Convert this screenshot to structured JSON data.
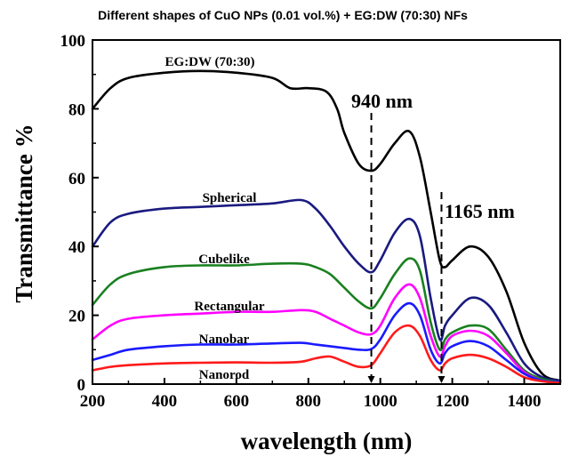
{
  "chart_data": {
    "type": "line",
    "title": "Different shapes of CuO NPs (0.01 vol.%) + EG:DW (70:30) NFs",
    "xlabel": "wavelength (nm)",
    "ylabel": "Transmittance %",
    "xlim": [
      200,
      1500
    ],
    "ylim": [
      0,
      100
    ],
    "x_ticks": [
      "200",
      "400",
      "600",
      "800",
      "1000",
      "1200",
      "1400"
    ],
    "y_ticks": [
      "0",
      "20",
      "40",
      "60",
      "80",
      "100"
    ],
    "grid": false,
    "legend": "none (series labeled inline)",
    "annotations": [
      {
        "text": "940 nm",
        "x": 975
      },
      {
        "text": "1165 nm",
        "x": 1170
      }
    ],
    "series": [
      {
        "name": "EG:DW (70:30)",
        "color": "#000000",
        "x": [
          200,
          250,
          300,
          400,
          500,
          600,
          700,
          750,
          800,
          850,
          880,
          900,
          940,
          975,
          1000,
          1040,
          1080,
          1110,
          1140,
          1165,
          1180,
          1200,
          1250,
          1300,
          1350,
          1400,
          1450,
          1500
        ],
        "y": [
          80,
          86,
          89,
          90.5,
          91,
          90.5,
          89,
          86,
          86,
          85,
          80,
          73,
          64,
          62,
          64,
          70,
          73.5,
          66,
          50,
          36,
          34,
          36,
          40,
          37,
          27,
          12,
          3,
          1
        ]
      },
      {
        "name": "Spherical",
        "color": "#1a1a80",
        "x": [
          200,
          250,
          300,
          400,
          500,
          600,
          700,
          780,
          820,
          860,
          900,
          940,
          975,
          1000,
          1040,
          1080,
          1110,
          1140,
          1165,
          1180,
          1200,
          1250,
          1300,
          1350,
          1400,
          1450,
          1500
        ],
        "y": [
          40,
          47,
          49.5,
          51,
          51.5,
          52,
          52.5,
          53.5,
          51,
          46,
          40,
          35,
          32.5,
          36,
          44,
          48,
          43,
          25,
          13,
          17,
          20,
          25,
          23,
          15,
          6,
          2,
          1
        ]
      },
      {
        "name": "Cubelike",
        "color": "#1a8020",
        "x": [
          200,
          250,
          300,
          400,
          500,
          600,
          700,
          780,
          820,
          860,
          900,
          940,
          975,
          1000,
          1040,
          1080,
          1110,
          1140,
          1165,
          1180,
          1200,
          1250,
          1300,
          1350,
          1400,
          1450,
          1500
        ],
        "y": [
          23,
          29,
          32,
          34,
          34.5,
          34.5,
          35,
          35,
          34,
          32,
          28,
          24,
          22,
          25,
          32,
          36.5,
          33,
          18,
          10,
          13,
          15,
          17,
          16,
          10,
          4,
          1.5,
          0.5
        ]
      },
      {
        "name": "Rectangular",
        "color": "#ff00ff",
        "x": [
          200,
          250,
          300,
          400,
          500,
          600,
          700,
          780,
          820,
          860,
          900,
          940,
          975,
          1000,
          1040,
          1080,
          1110,
          1140,
          1165,
          1180,
          1200,
          1250,
          1300,
          1350,
          1400,
          1450,
          1500
        ],
        "y": [
          13,
          17,
          19,
          20,
          20.5,
          21,
          21,
          21.5,
          21,
          19,
          17,
          15,
          14.5,
          17,
          25,
          29,
          25,
          14,
          8,
          11,
          14,
          15.5,
          14,
          9,
          3.5,
          1,
          0.5
        ]
      },
      {
        "name": "Nanobar",
        "color": "#1a1aff",
        "x": [
          200,
          250,
          300,
          400,
          500,
          600,
          700,
          780,
          820,
          860,
          900,
          940,
          975,
          1000,
          1040,
          1080,
          1110,
          1140,
          1165,
          1180,
          1200,
          1250,
          1300,
          1350,
          1400,
          1450,
          1500
        ],
        "y": [
          7,
          8.5,
          10,
          11,
          11.5,
          11.5,
          11.8,
          12,
          11.5,
          11,
          10.5,
          10,
          10.2,
          13,
          20,
          23.5,
          20,
          10,
          6,
          9,
          11,
          12.5,
          11,
          7,
          3,
          1,
          0.5
        ]
      },
      {
        "name": "Nanorod",
        "color": "#ff1a1a",
        "x": [
          200,
          250,
          300,
          400,
          500,
          600,
          700,
          780,
          820,
          860,
          900,
          940,
          975,
          1000,
          1040,
          1080,
          1110,
          1140,
          1165,
          1180,
          1200,
          1250,
          1300,
          1350,
          1400,
          1450,
          1500
        ],
        "y": [
          4,
          5,
          5.5,
          6,
          6.2,
          6.3,
          6.2,
          6.5,
          7.5,
          8,
          6.5,
          5,
          5.5,
          9,
          15,
          17,
          14,
          7,
          4,
          6,
          7.5,
          8.5,
          7.5,
          5,
          2,
          0.8,
          0.3
        ]
      }
    ]
  }
}
